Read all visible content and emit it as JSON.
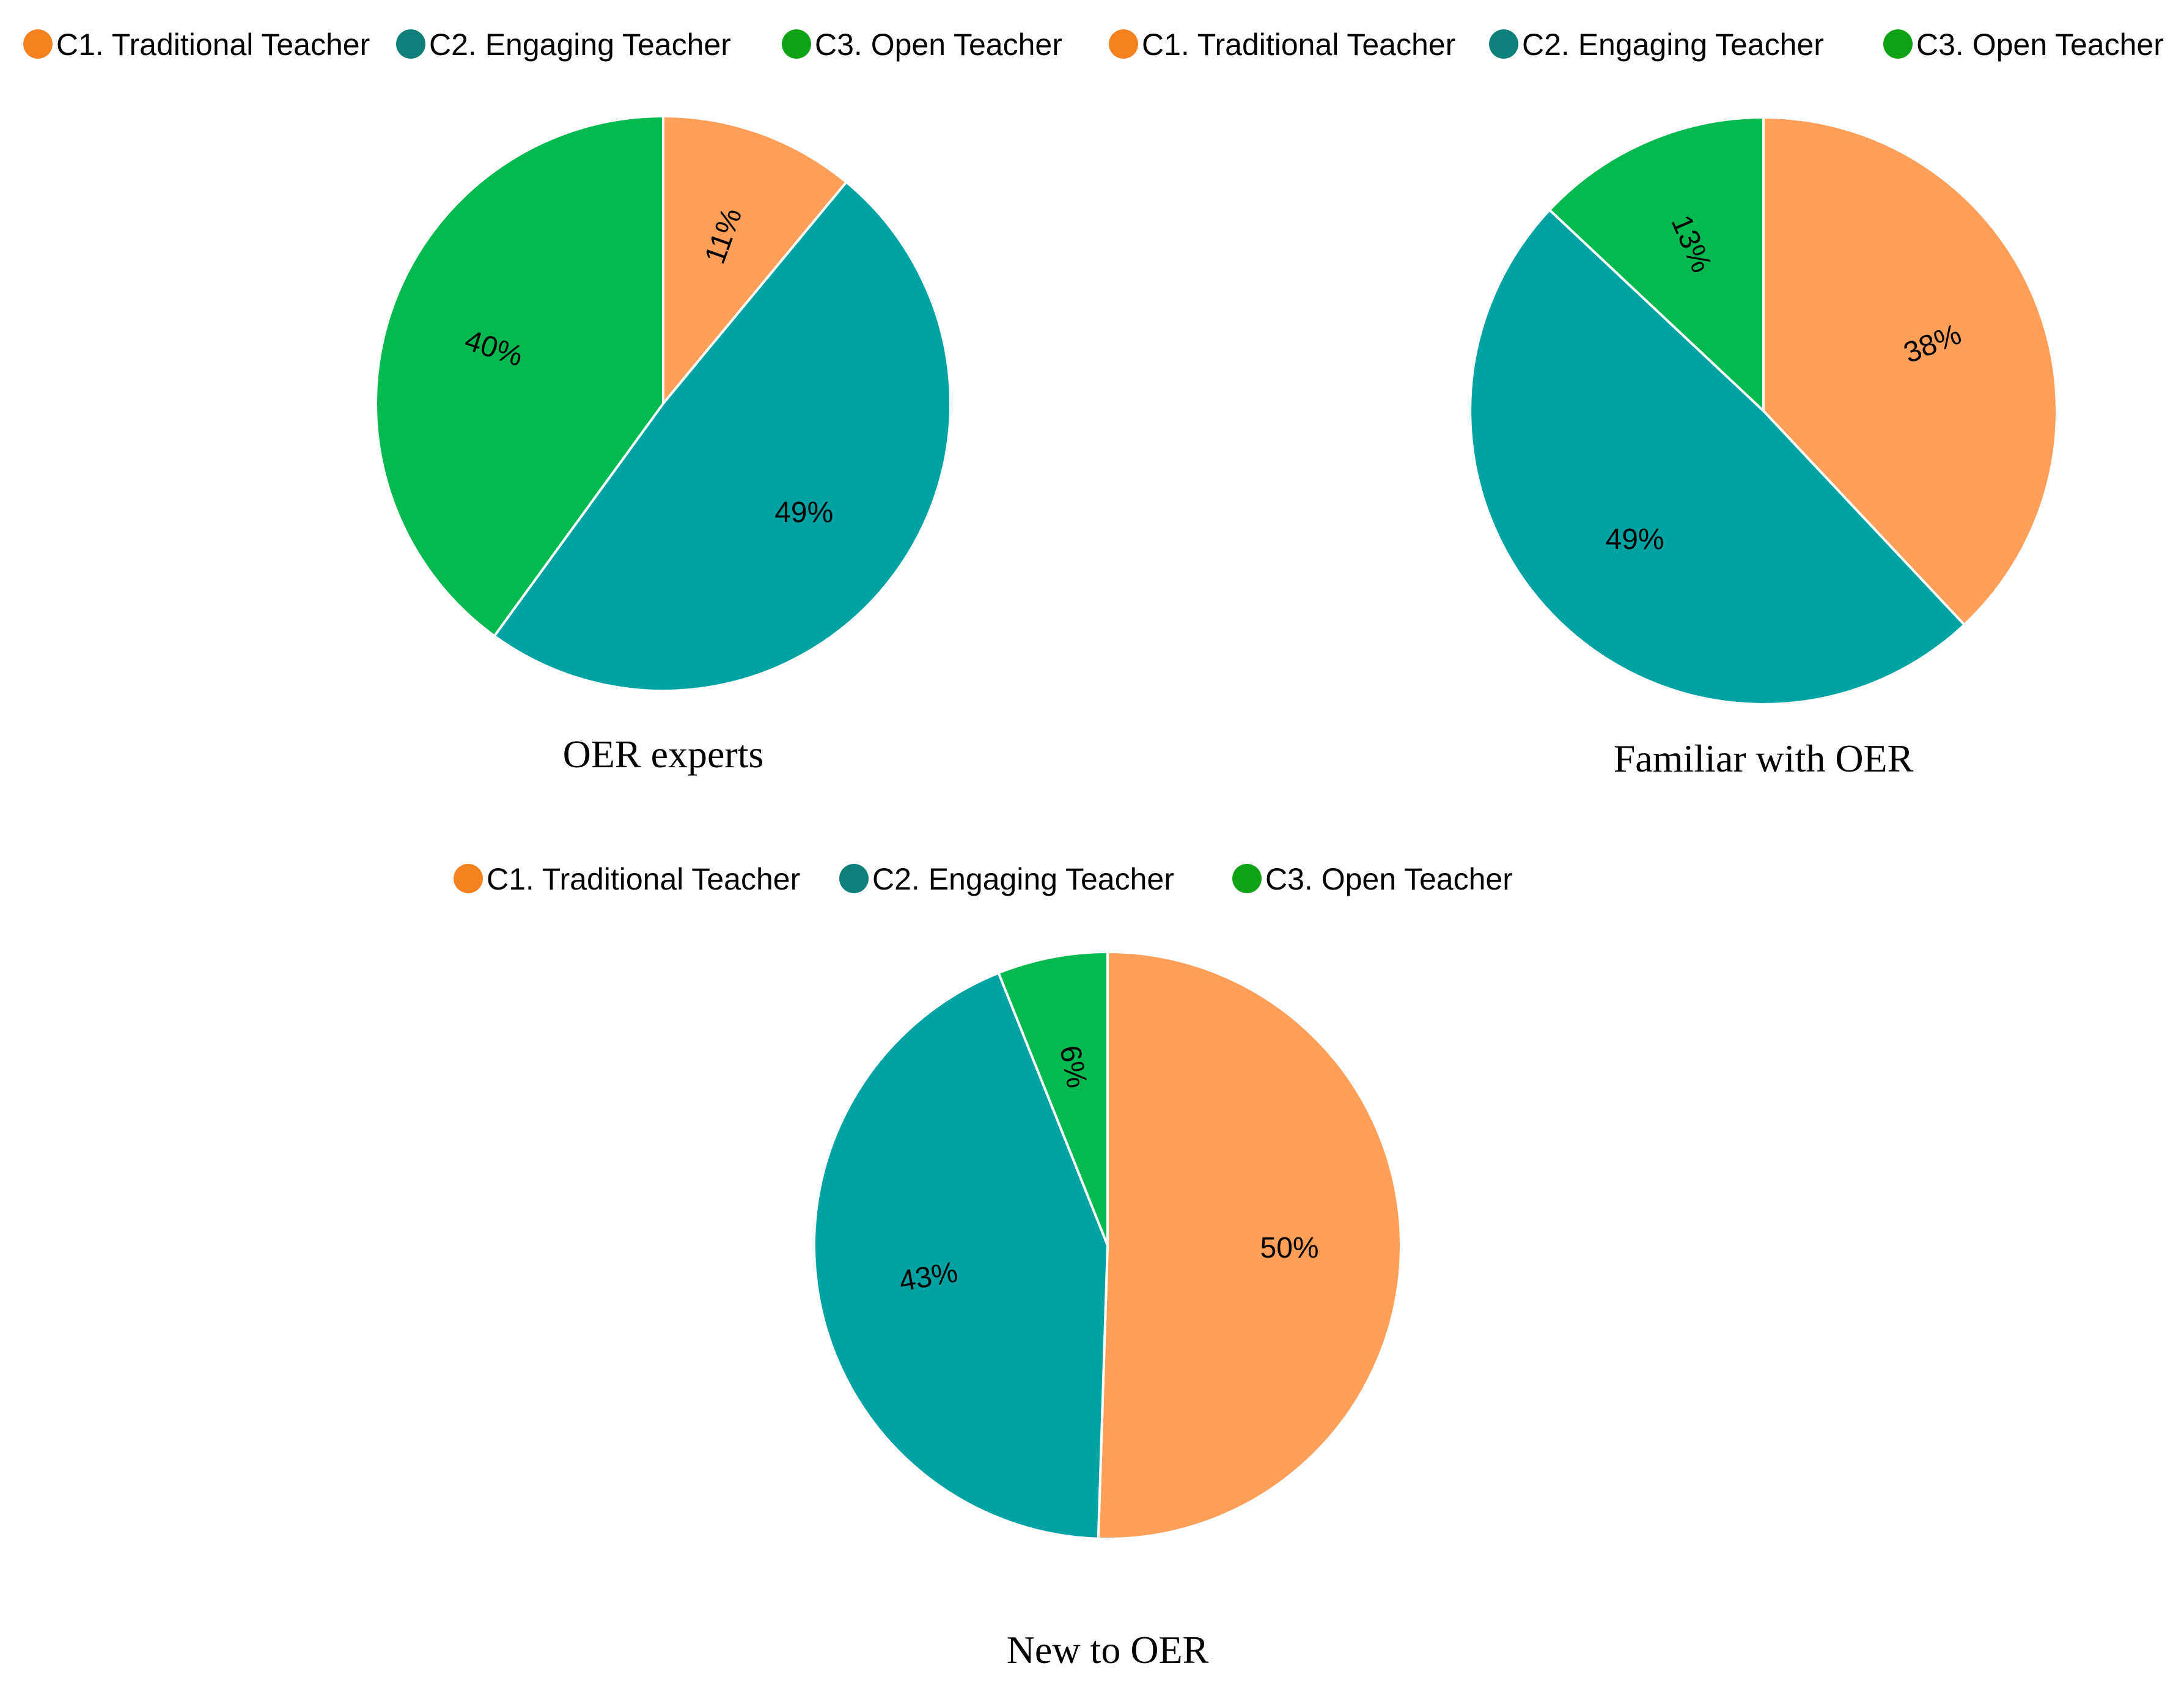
{
  "legend_colors": [
    "#F5821F",
    "#0E7F7A",
    "#0FA214"
  ],
  "chart_data": [
    {
      "type": "pie",
      "title": "OER experts",
      "legend": [
        "C1. Traditional Teacher",
        "C2. Engaging Teacher",
        "C3. Open Teacher"
      ],
      "slices": [
        {
          "name": "C1. Traditional Teacher",
          "value": 11,
          "label": "11%",
          "color": "#FF9F5A"
        },
        {
          "name": "C2. Engaging Teacher",
          "value": 49,
          "label": "49%",
          "color": "#00A3A2"
        },
        {
          "name": "C3. Open Teacher",
          "value": 40,
          "label": "40%",
          "color": "#04BA4E"
        }
      ]
    },
    {
      "type": "pie",
      "title": "Familiar with OER",
      "legend": [
        "C1. Traditional Teacher",
        "C2. Engaging Teacher",
        "C3. Open Teacher"
      ],
      "slices": [
        {
          "name": "C1. Traditional Teacher",
          "value": 38,
          "label": "38%",
          "color": "#FF9F5A"
        },
        {
          "name": "C2. Engaging Teacher",
          "value": 49,
          "label": "49%",
          "color": "#00A3A2"
        },
        {
          "name": "C3. Open Teacher",
          "value": 13,
          "label": "13%",
          "color": "#04BA4E"
        }
      ]
    },
    {
      "type": "pie",
      "title": "New to OER",
      "legend": [
        "C1. Traditional Teacher",
        "C2. Engaging Teacher",
        "C3. Open Teacher"
      ],
      "slices": [
        {
          "name": "C1. Traditional Teacher",
          "value": 50,
          "label": "50%",
          "color": "#FF9F5A"
        },
        {
          "name": "C2. Engaging Teacher",
          "value": 43,
          "label": "43%",
          "color": "#00A3A2"
        },
        {
          "name": "C3. Open Teacher",
          "value": 6,
          "label": "6%",
          "color": "#04BA4E"
        }
      ]
    }
  ]
}
